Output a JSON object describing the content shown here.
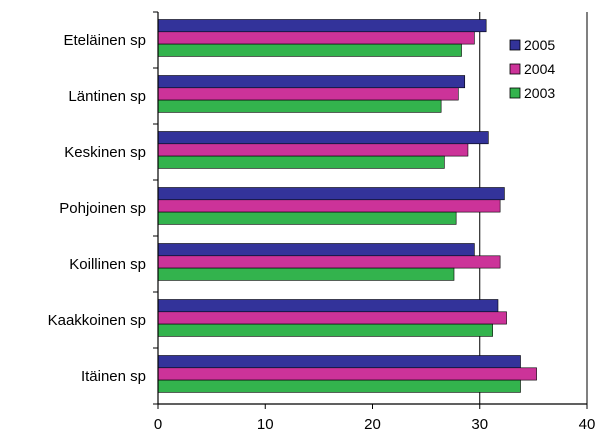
{
  "chart_data": {
    "type": "bar",
    "orientation": "horizontal",
    "categories": [
      "Eteläinen sp",
      "Läntinen sp",
      "Keskinen sp",
      "Pohjoinen sp",
      "Koillinen sp",
      "Kaakkoinen sp",
      "Itäinen sp"
    ],
    "series": [
      {
        "name": "2005",
        "color": "#33339a",
        "values": [
          30.6,
          28.6,
          30.8,
          32.3,
          29.5,
          31.7,
          33.8
        ]
      },
      {
        "name": "2004",
        "color": "#cc3399",
        "values": [
          29.5,
          28.0,
          28.9,
          31.9,
          31.9,
          32.5,
          35.3
        ]
      },
      {
        "name": "2003",
        "color": "#33b34d",
        "values": [
          28.3,
          26.4,
          26.7,
          27.8,
          27.6,
          31.2,
          33.8
        ]
      }
    ],
    "xlim": [
      0,
      40
    ],
    "xticks": [
      "0",
      "10",
      "20",
      "30",
      "40"
    ],
    "grid": "vertical at 30 and 40",
    "legend_position": "top-right",
    "title": "",
    "xlabel": "",
    "ylabel": ""
  }
}
